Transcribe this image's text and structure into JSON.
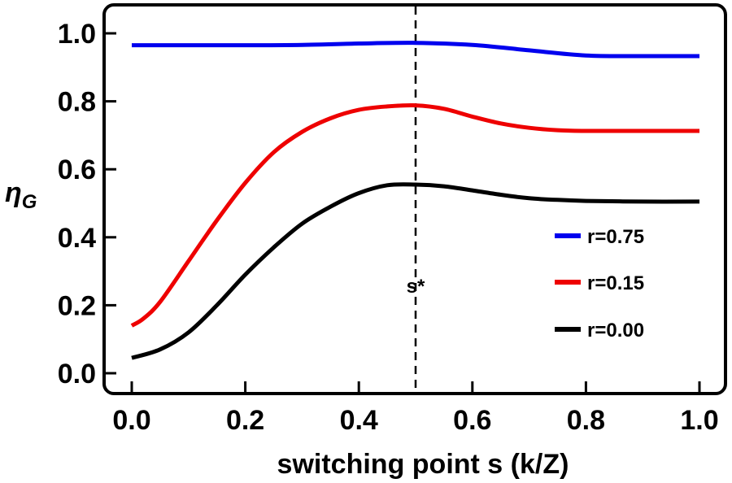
{
  "chart_data": {
    "type": "line",
    "xlabel": "switching point s (k/Z)",
    "ylabel": "ηG",
    "ylabel_main": "η",
    "ylabel_sub": "G",
    "xlim": [
      0.0,
      1.0
    ],
    "ylim": [
      0.0,
      1.0
    ],
    "xticks": [
      "0.0",
      "0.2",
      "0.4",
      "0.6",
      "0.8",
      "1.0"
    ],
    "yticks": [
      "0.0",
      "0.2",
      "0.4",
      "0.6",
      "0.8",
      "1.0"
    ],
    "grid": false,
    "legend_position": "bottom-right",
    "annotation": {
      "text": "s*",
      "x": 0.5,
      "style": "dashed vertical line"
    },
    "series": [
      {
        "name": "r=0.75",
        "color": "#0000ee",
        "x": [
          0.0,
          0.1,
          0.2,
          0.3,
          0.4,
          0.5,
          0.6,
          0.7,
          0.8,
          0.9,
          1.0
        ],
        "y": [
          0.965,
          0.965,
          0.965,
          0.966,
          0.97,
          0.972,
          0.966,
          0.95,
          0.935,
          0.933,
          0.933
        ]
      },
      {
        "name": "r=0.15",
        "color": "#ee0000",
        "x": [
          0.0,
          0.02,
          0.05,
          0.1,
          0.15,
          0.2,
          0.25,
          0.3,
          0.35,
          0.4,
          0.45,
          0.5,
          0.55,
          0.6,
          0.65,
          0.7,
          0.75,
          0.8,
          0.9,
          1.0
        ],
        "y": [
          0.14,
          0.16,
          0.21,
          0.33,
          0.45,
          0.56,
          0.65,
          0.71,
          0.75,
          0.775,
          0.785,
          0.788,
          0.778,
          0.755,
          0.735,
          0.722,
          0.715,
          0.713,
          0.713,
          0.713
        ]
      },
      {
        "name": "r=0.00",
        "color": "#000000",
        "x": [
          0.0,
          0.05,
          0.1,
          0.15,
          0.2,
          0.25,
          0.3,
          0.35,
          0.4,
          0.45,
          0.5,
          0.55,
          0.6,
          0.65,
          0.7,
          0.75,
          0.8,
          0.9,
          1.0
        ],
        "y": [
          0.045,
          0.07,
          0.12,
          0.2,
          0.29,
          0.37,
          0.44,
          0.49,
          0.53,
          0.553,
          0.555,
          0.55,
          0.538,
          0.525,
          0.515,
          0.51,
          0.507,
          0.505,
          0.505
        ]
      }
    ]
  }
}
